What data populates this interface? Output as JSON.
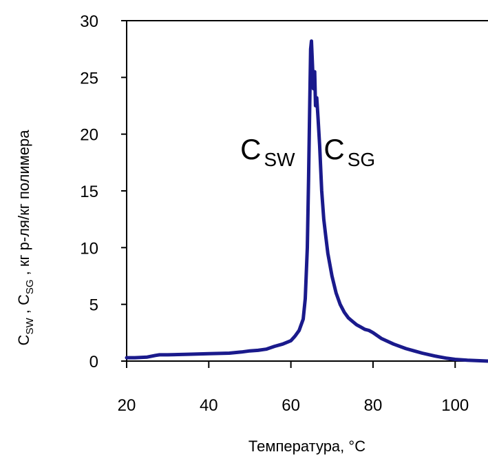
{
  "chart_data": {
    "type": "line",
    "title": "",
    "xlabel": "Температура, °С",
    "ylabel": {
      "c1": "C",
      "c1_sub": "SW",
      "sep1": " , ",
      "c2": "C",
      "c2_sub": "SG",
      "rest": " , кг р-ля/кг полимера"
    },
    "xlim": [
      20,
      108
    ],
    "ylim": [
      0,
      30
    ],
    "x_ticks": [
      20,
      40,
      60,
      80,
      100
    ],
    "x_tick_labels": [
      "20",
      "40",
      "60",
      "80",
      "100"
    ],
    "y_ticks": [
      0,
      5,
      10,
      15,
      20,
      25,
      30
    ],
    "y_tick_labels": [
      "0",
      "5",
      "10",
      "15",
      "20",
      "25",
      "30"
    ],
    "grid": false,
    "line_color": "#1a1a8c",
    "annotations": [
      {
        "text": "C",
        "sub": "SW",
        "x": 61,
        "y": 17.8
      },
      {
        "text": "C",
        "sub": "SG",
        "x": 68,
        "y": 17.8
      }
    ],
    "series": [
      {
        "x": [
          20,
          22,
          25,
          27,
          28,
          30,
          35,
          40,
          45,
          48,
          50,
          52,
          54,
          56,
          58,
          60,
          61,
          62,
          63,
          63.5,
          64,
          64.3,
          64.6,
          64.8,
          65,
          65.2,
          65.5,
          65.8,
          66,
          66.3,
          66.6,
          67,
          67.5,
          68,
          68.5,
          69,
          70,
          71,
          72,
          73,
          74,
          75,
          76,
          77,
          78,
          79,
          80,
          82,
          85,
          88,
          90,
          92,
          95,
          98,
          100,
          103,
          105,
          108
        ],
        "y": [
          0.3,
          0.3,
          0.35,
          0.5,
          0.55,
          0.55,
          0.6,
          0.65,
          0.7,
          0.8,
          0.9,
          0.95,
          1.05,
          1.3,
          1.5,
          1.8,
          2.2,
          2.7,
          3.7,
          5.5,
          10,
          16,
          23,
          27.5,
          28.2,
          26.5,
          24,
          25.5,
          22.5,
          23.2,
          21.5,
          19,
          15,
          12.5,
          11,
          9.5,
          7.5,
          6,
          5,
          4.3,
          3.8,
          3.5,
          3.2,
          3,
          2.8,
          2.7,
          2.5,
          2,
          1.5,
          1.1,
          0.9,
          0.7,
          0.45,
          0.25,
          0.15,
          0.08,
          0.05,
          0
        ]
      }
    ]
  }
}
